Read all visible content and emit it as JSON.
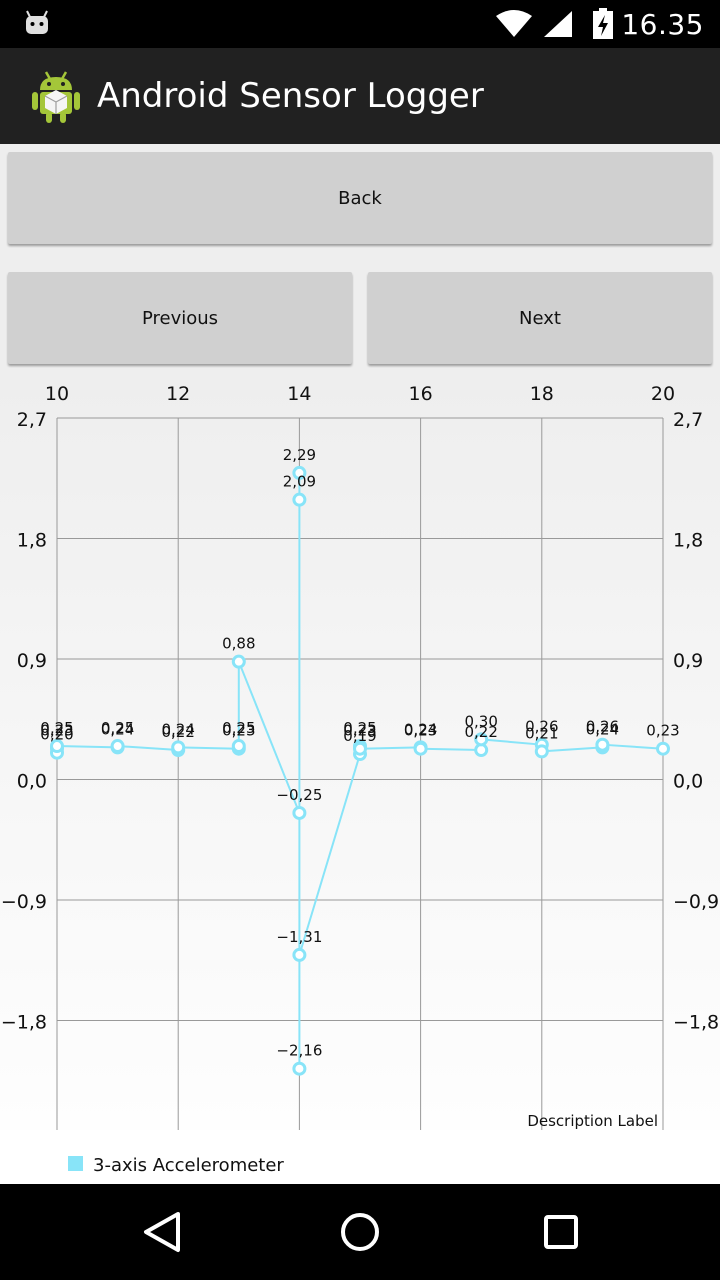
{
  "status_bar": {
    "time": "16.35"
  },
  "action_bar": {
    "title": "Android Sensor Logger"
  },
  "buttons": {
    "back": "Back",
    "previous": "Previous",
    "next": "Next"
  },
  "chart_data": {
    "type": "line",
    "xlim": [
      10,
      20
    ],
    "ylim": [
      -2.7,
      2.7
    ],
    "x_ticks": [
      "10",
      "12",
      "14",
      "16",
      "18",
      "20"
    ],
    "y_ticks": [
      "2,7",
      "1,8",
      "0,9",
      "0,0",
      "−0,9",
      "−1,8"
    ],
    "description": "Description Label",
    "color": "#88e4f8",
    "series": [
      {
        "name": "3-axis Accelerometer",
        "points": [
          {
            "x": 10,
            "y": 0.23,
            "label": "0,23"
          },
          {
            "x": 10,
            "y": 0.2,
            "label": "0,20"
          },
          {
            "x": 10,
            "y": 0.25,
            "label": "0,25"
          },
          {
            "x": 11,
            "y": 0.24,
            "label": "0,24"
          },
          {
            "x": 11,
            "y": 0.25,
            "label": "0,25"
          },
          {
            "x": 12,
            "y": 0.22,
            "label": "0,22"
          },
          {
            "x": 12,
            "y": 0.24,
            "label": "0,24"
          },
          {
            "x": 13,
            "y": 0.23,
            "label": "0,23"
          },
          {
            "x": 13,
            "y": 0.25,
            "label": "0,25"
          },
          {
            "x": 13,
            "y": 0.88,
            "label": "0,88"
          },
          {
            "x": 14,
            "y": -0.25,
            "label": "−0,25"
          },
          {
            "x": 14,
            "y": 2.29,
            "label": "2,29"
          },
          {
            "x": 14,
            "y": 2.09,
            "label": "2,09"
          },
          {
            "x": 14,
            "y": -2.16,
            "label": "−2,16"
          },
          {
            "x": 14,
            "y": -1.31,
            "label": "−1,31"
          },
          {
            "x": 15,
            "y": 0.19,
            "label": "0,19"
          },
          {
            "x": 15,
            "y": 0.25,
            "label": "0,25"
          },
          {
            "x": 15,
            "y": 0.23,
            "label": "0,23"
          },
          {
            "x": 16,
            "y": 0.24,
            "label": "0,24"
          },
          {
            "x": 16,
            "y": 0.23,
            "label": "0,23"
          },
          {
            "x": 17,
            "y": 0.22,
            "label": "0,22"
          },
          {
            "x": 17,
            "y": 0.3,
            "label": "0,30"
          },
          {
            "x": 18,
            "y": 0.26,
            "label": "0,26"
          },
          {
            "x": 18,
            "y": 0.21,
            "label": "0,21"
          },
          {
            "x": 19,
            "y": 0.24,
            "label": "0,24"
          },
          {
            "x": 19,
            "y": 0.26,
            "label": "0,26"
          },
          {
            "x": 20,
            "y": 0.23,
            "label": "0,23"
          }
        ]
      }
    ]
  }
}
